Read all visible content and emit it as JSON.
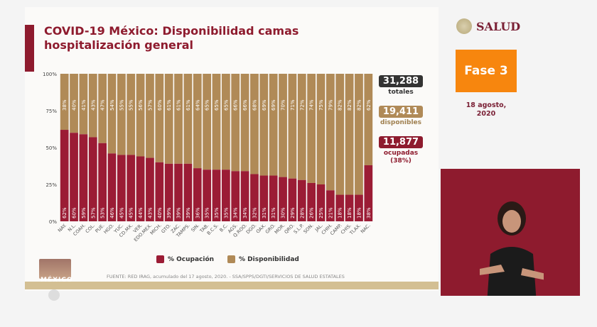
{
  "title": "COVID-19 México: Disponibilidad camas hospitalización general",
  "stats": {
    "total": "31,288",
    "total_label": "totales",
    "available": "19,411",
    "available_label": "disponibles",
    "occupied": "11,877",
    "occupied_label": "ocupadas (38%)"
  },
  "header": {
    "brand": "SALUD",
    "phase": "Fase 3",
    "date": "18 agosto, 2020"
  },
  "footer": {
    "source": "FUENTE: RED IRAG, acumulado del 17 agosto, 2020. -  SSA/SPPS/DGTI/SERVICIOS DE SALUD ESTATALES",
    "logo_text": "MÉXICO"
  },
  "colors": {
    "occupation": "#9b1c35",
    "availability": "#b08a57",
    "title": "#8e1b2e",
    "phase": "#f7860e"
  },
  "chart_data": {
    "type": "bar",
    "stacked": true,
    "ylim": [
      0,
      100
    ],
    "yticks": [
      "0%",
      "25%",
      "50%",
      "75%",
      "100%"
    ],
    "categories": [
      "NAY.",
      "N.L.",
      "COAH.",
      "COL.",
      "PUE.",
      "HGO.",
      "YUC.",
      "CD.MX.",
      "VER.",
      "EDO.MEX.",
      "MICH.",
      "GTO.",
      "ZAC.",
      "TAMPS.",
      "SIN.",
      "TAB.",
      "B.C.S.",
      "B.C.",
      "AGS.",
      "Q.ROO.",
      "DGO.",
      "OAX.",
      "GRO.",
      "MOR.",
      "QRO.",
      "S.L.P.",
      "SON.",
      "JAL.",
      "CHIH.",
      "CAMP.",
      "CHIS.",
      "TLAX.",
      "NAC."
    ],
    "series": [
      {
        "name": "% Ocupación",
        "values": [
          62,
          60,
          59,
          57,
          53,
          46,
          45,
          45,
          44,
          43,
          40,
          39,
          39,
          39,
          36,
          35,
          35,
          35,
          34,
          34,
          32,
          31,
          31,
          30,
          29,
          28,
          26,
          25,
          21,
          18,
          18,
          18,
          38
        ]
      },
      {
        "name": "% Disponibilidad",
        "values": [
          38,
          40,
          41,
          43,
          47,
          54,
          55,
          55,
          56,
          57,
          60,
          61,
          61,
          61,
          64,
          65,
          65,
          65,
          66,
          66,
          68,
          69,
          69,
          70,
          71,
          72,
          74,
          75,
          79,
          82,
          82,
          82,
          62
        ]
      }
    ],
    "legend": "bottom"
  }
}
